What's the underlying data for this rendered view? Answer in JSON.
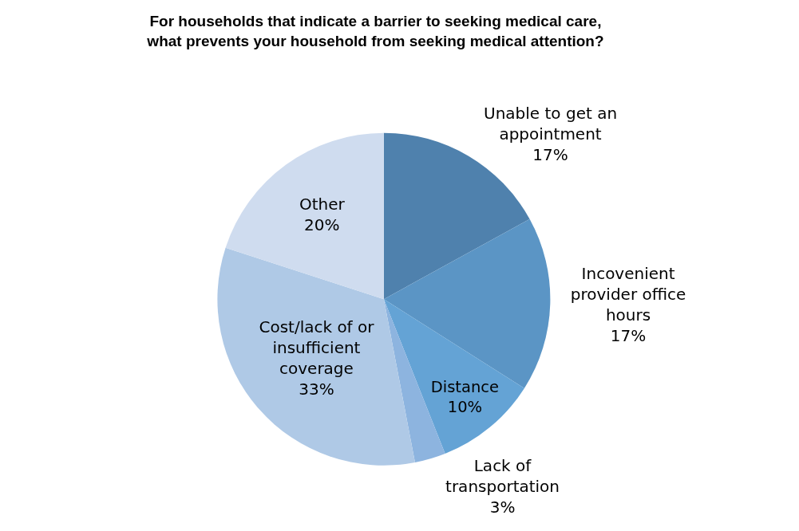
{
  "chart_data": {
    "type": "pie",
    "title": "For households that indicate a barrier to seeking medical care, what prevents your household from seeking medical attention?",
    "categories": [
      "Unable to get an appointment",
      "Incovenient provider office hours",
      "Distance",
      "Lack of transportation",
      "Cost/lack of or insufficient coverage",
      "Other"
    ],
    "values": [
      17,
      17,
      10,
      3,
      33,
      20
    ],
    "value_labels": [
      "17%",
      "17%",
      "10%",
      "3%",
      "33%",
      "20%"
    ],
    "colors": [
      "#4f81ad",
      "#5b95c5",
      "#64a3d5",
      "#8db4df",
      "#afc9e6",
      "#cfdcef"
    ],
    "legend": false
  }
}
